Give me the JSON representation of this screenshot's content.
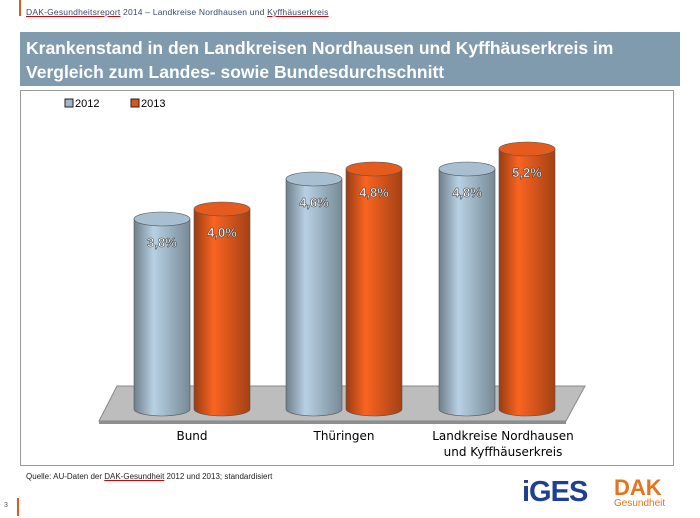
{
  "header": {
    "pre": "DAK-Gesundheitsreport",
    "mid": " 2014 – Landkreise Nordhausen und ",
    "post": "Kyffhäuserkreis"
  },
  "title": "Krankenstand in den Landkreisen Nordhausen und Kyffhäuserkreis im Vergleich zum Landes- sowie Bundesdurchschnitt",
  "source": {
    "pre": "Quelle: AU-Daten der ",
    "link": "DAK-Gesundheit",
    "post": " 2012 und 2013; standardisiert"
  },
  "page_number": "3",
  "logos": {
    "iges": "iGES",
    "dak": "DAK",
    "dak_sub": "Gesundheit"
  },
  "chart_data": {
    "type": "bar",
    "style": "3d-cylinder",
    "categories": [
      "Bund",
      "Thüringen",
      "Landkreise Nordhausen und Kyffhäuserkreis"
    ],
    "series": [
      {
        "name": "2012",
        "values": [
          3.8,
          4.6,
          4.8
        ],
        "labels": [
          "3,8%",
          "4,6%",
          "4,8%"
        ],
        "color": "#9fb6c6"
      },
      {
        "name": "2013",
        "values": [
          4.0,
          4.8,
          5.2
        ],
        "labels": [
          "4,0%",
          "4,8%",
          "5,2%"
        ],
        "color": "#d9571c"
      }
    ],
    "legend": "top-left",
    "grid": false,
    "ylim": [
      0,
      5.2
    ]
  }
}
